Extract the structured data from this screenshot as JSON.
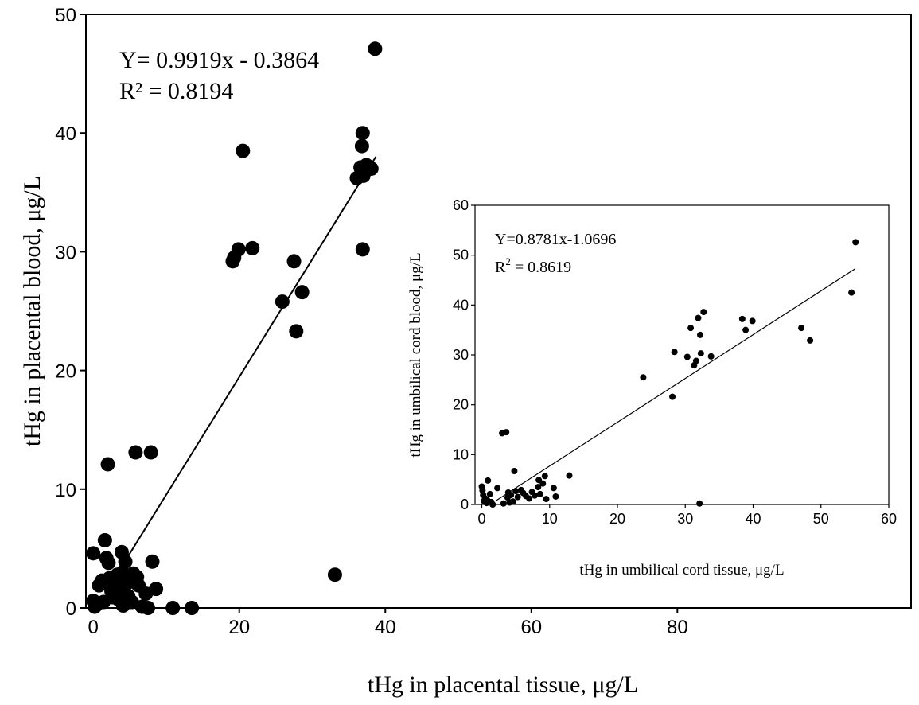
{
  "chart_data": [
    {
      "type": "scatter",
      "xlabel": "tHg in placental tissue, μg/L",
      "ylabel": "tHg in placental blood, μg/L",
      "xlim": [
        -1,
        112
      ],
      "ylim": [
        0,
        50
      ],
      "xticks": [
        0,
        20,
        40,
        60,
        80
      ],
      "yticks": [
        0,
        10,
        20,
        30,
        40,
        50
      ],
      "equation": "Y= 0.9919x - 0.3864",
      "r_squared": "R² = 0.8194",
      "fit": {
        "slope": 0.9919,
        "intercept": -0.3864,
        "x_range": [
          4,
          38.7
        ]
      },
      "points": [
        [
          0,
          4.6
        ],
        [
          0,
          0.6
        ],
        [
          0.2,
          0.1
        ],
        [
          0.5,
          0.3
        ],
        [
          0.8,
          1.9
        ],
        [
          1.2,
          2.3
        ],
        [
          1.4,
          0.5
        ],
        [
          1.6,
          5.7
        ],
        [
          1.8,
          4.2
        ],
        [
          2,
          12.1
        ],
        [
          2.1,
          3.8
        ],
        [
          2.2,
          2.5
        ],
        [
          2.5,
          1.4
        ],
        [
          2.7,
          0.9
        ],
        [
          2.9,
          2.1
        ],
        [
          3.1,
          1.7
        ],
        [
          3.3,
          2.8
        ],
        [
          3.5,
          0.7
        ],
        [
          3.6,
          1.1
        ],
        [
          3.8,
          2.4
        ],
        [
          3.9,
          4.7
        ],
        [
          4.0,
          3.0
        ],
        [
          4.1,
          0.2
        ],
        [
          4.2,
          1.6
        ],
        [
          4.4,
          3.9
        ],
        [
          4.6,
          2.7
        ],
        [
          4.8,
          1.0
        ],
        [
          5.0,
          2.2
        ],
        [
          5.3,
          0.5
        ],
        [
          5.5,
          2.9
        ],
        [
          5.8,
          13.1
        ],
        [
          6.0,
          2.6
        ],
        [
          6.2,
          1.9
        ],
        [
          6.7,
          0.1
        ],
        [
          7.2,
          1.2
        ],
        [
          7.5,
          0.0
        ],
        [
          7.9,
          13.1
        ],
        [
          8.1,
          3.9
        ],
        [
          8.6,
          1.6
        ],
        [
          10.9,
          0.0
        ],
        [
          13.5,
          0.0
        ],
        [
          19.1,
          29.2
        ],
        [
          19.3,
          29.5
        ],
        [
          19.9,
          30.2
        ],
        [
          20.5,
          38.5
        ],
        [
          21.8,
          30.3
        ],
        [
          25.9,
          25.8
        ],
        [
          27.5,
          29.2
        ],
        [
          27.8,
          23.3
        ],
        [
          28.6,
          26.6
        ],
        [
          33.1,
          2.8
        ],
        [
          36.1,
          36.2
        ],
        [
          36.6,
          37.1
        ],
        [
          36.8,
          38.9
        ],
        [
          36.9,
          40.0
        ],
        [
          37.0,
          36.4
        ],
        [
          36.9,
          30.2
        ],
        [
          37.4,
          37.3
        ],
        [
          38.1,
          37.0
        ],
        [
          38.6,
          47.1
        ]
      ]
    },
    {
      "type": "scatter",
      "xlabel": "tHg in umbilical cord tissue, μg/L",
      "ylabel": "tHg in umbilical cord blood, μg/L",
      "xlim": [
        -1,
        60
      ],
      "ylim": [
        0,
        60
      ],
      "xticks": [
        0,
        10,
        20,
        30,
        40,
        50,
        60
      ],
      "yticks": [
        0,
        10,
        20,
        30,
        40,
        50,
        60
      ],
      "equation": "Y=0.8781x-1.0696",
      "r_squared_label": "R",
      "r_squared_sup": "2",
      "r_squared_value": " = 0.8619",
      "fit": {
        "slope": 0.8781,
        "intercept": -1.0696,
        "x_range": [
          2,
          55
        ]
      },
      "points": [
        [
          0,
          3.6
        ],
        [
          0.1,
          2.8
        ],
        [
          0.2,
          1.9
        ],
        [
          0.3,
          0.7
        ],
        [
          0.5,
          1.2
        ],
        [
          0.7,
          0.3
        ],
        [
          0.8,
          0.9
        ],
        [
          0.9,
          4.8
        ],
        [
          1.2,
          2.1
        ],
        [
          1.4,
          0.5
        ],
        [
          1.6,
          0.0
        ],
        [
          2.3,
          3.3
        ],
        [
          3.0,
          14.3
        ],
        [
          3.2,
          0.2
        ],
        [
          3.6,
          14.5
        ],
        [
          3.8,
          1.4
        ],
        [
          3.9,
          2.4
        ],
        [
          4.1,
          0.4
        ],
        [
          4.3,
          1.9
        ],
        [
          4.6,
          0.6
        ],
        [
          4.8,
          6.7
        ],
        [
          5.0,
          2.7
        ],
        [
          5.3,
          1.5
        ],
        [
          5.8,
          2.9
        ],
        [
          6.1,
          2.3
        ],
        [
          6.5,
          1.7
        ],
        [
          7.0,
          1.2
        ],
        [
          7.4,
          2.5
        ],
        [
          7.8,
          1.8
        ],
        [
          8.3,
          3.5
        ],
        [
          8.4,
          4.9
        ],
        [
          8.6,
          2.1
        ],
        [
          9.0,
          4.2
        ],
        [
          9.3,
          5.7
        ],
        [
          9.5,
          1.1
        ],
        [
          10.6,
          3.3
        ],
        [
          10.9,
          1.6
        ],
        [
          12.9,
          5.8
        ],
        [
          23.8,
          25.5
        ],
        [
          28.1,
          21.6
        ],
        [
          28.4,
          30.6
        ],
        [
          30.3,
          29.6
        ],
        [
          30.8,
          35.4
        ],
        [
          31.3,
          27.9
        ],
        [
          31.6,
          28.8
        ],
        [
          31.9,
          37.4
        ],
        [
          32.1,
          0.2
        ],
        [
          32.2,
          34.0
        ],
        [
          32.3,
          30.3
        ],
        [
          32.7,
          38.6
        ],
        [
          33.8,
          29.7
        ],
        [
          38.4,
          37.2
        ],
        [
          38.9,
          35.0
        ],
        [
          39.9,
          36.8
        ],
        [
          47.1,
          35.4
        ],
        [
          48.4,
          32.9
        ],
        [
          54.5,
          42.5
        ],
        [
          55.1,
          52.6
        ]
      ]
    }
  ]
}
